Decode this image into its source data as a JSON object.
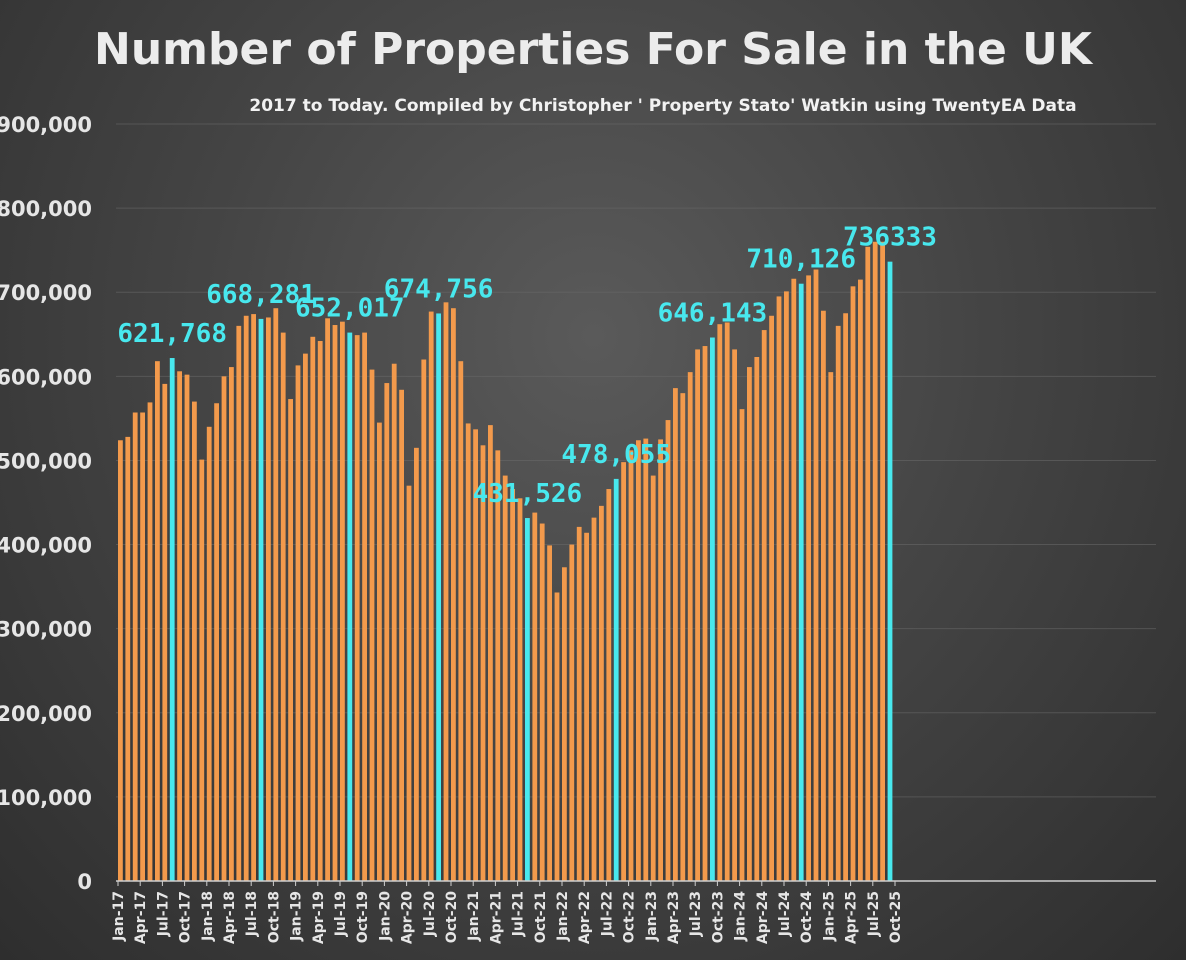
{
  "colors": {
    "bar": "#f39a4c",
    "highlight": "#48e8ee",
    "grid": "#6a6a6a",
    "axis": "#cfcfcf"
  },
  "chart_data": {
    "type": "bar",
    "title": "Number of Properties For Sale in the UK",
    "subtitle": "2017 to Today. Compiled by Christopher ' Property Stato' Watkin using TwentyEA Data",
    "xlabel": "",
    "ylabel": "",
    "ylim": [
      0,
      900000
    ],
    "yticks": [
      0,
      100000,
      200000,
      300000,
      400000,
      500000,
      600000,
      700000,
      800000,
      900000
    ],
    "ytick_labels": [
      "0",
      "100,000",
      "200,000",
      "300,000",
      "400,000",
      "500,000",
      "600,000",
      "700,000",
      "800,000",
      "900,000"
    ],
    "grid": true,
    "legend": "none",
    "start_month": "Jan-17",
    "xtick_labels": [
      "Jan-17",
      "Apr-17",
      "Jul-17",
      "Oct-17",
      "Jan-18",
      "Apr-18",
      "Jul-18",
      "Oct-18",
      "Jan-19",
      "Apr-19",
      "Jul-19",
      "Oct-19",
      "Jan-20",
      "Apr-20",
      "Jul-20",
      "Oct-20",
      "Jan-21",
      "Apr-21",
      "Jul-21",
      "Oct-21",
      "Jan-22",
      "Apr-22",
      "Jul-22",
      "Oct-22",
      "Jan-23",
      "Apr-23",
      "Jul-23",
      "Oct-23",
      "Jan-24",
      "Apr-24",
      "Jul-24",
      "Oct-24",
      "Jan-25",
      "Apr-25",
      "Jul-25",
      "Oct-25"
    ],
    "values": [
      524000,
      528000,
      557000,
      557000,
      569000,
      618000,
      591000,
      621768,
      606000,
      602000,
      570000,
      501000,
      540000,
      568000,
      600000,
      611000,
      660000,
      672000,
      674000,
      668281,
      670000,
      681000,
      652000,
      573000,
      613000,
      627000,
      647000,
      642000,
      669000,
      661000,
      665000,
      652017,
      649000,
      652000,
      608000,
      545000,
      592000,
      615000,
      584000,
      470000,
      515000,
      620000,
      677000,
      674756,
      688000,
      681000,
      618000,
      544000,
      537000,
      518000,
      542000,
      512000,
      482000,
      466000,
      455000,
      431526,
      438000,
      425000,
      399000,
      343000,
      373000,
      400000,
      421000,
      414000,
      432000,
      446000,
      466000,
      478055,
      498000,
      512000,
      524000,
      526000,
      482000,
      525000,
      548000,
      586000,
      580000,
      605000,
      632000,
      636000,
      646143,
      662000,
      664000,
      632000,
      561000,
      611000,
      623000,
      655000,
      672000,
      695000,
      701000,
      716000,
      710126,
      720000,
      727000,
      678000,
      605000,
      660000,
      675000,
      707000,
      715000,
      754000,
      760000,
      760000,
      736333
    ],
    "highlights": [
      {
        "index": 7,
        "label": "621,768"
      },
      {
        "index": 19,
        "label": "668,281"
      },
      {
        "index": 31,
        "label": "652,017"
      },
      {
        "index": 43,
        "label": "674,756"
      },
      {
        "index": 55,
        "label": "431,526"
      },
      {
        "index": 67,
        "label": "478,055"
      },
      {
        "index": 80,
        "label": "646,143"
      },
      {
        "index": 92,
        "label": "710,126"
      },
      {
        "index": 104,
        "label": "736333"
      }
    ]
  }
}
